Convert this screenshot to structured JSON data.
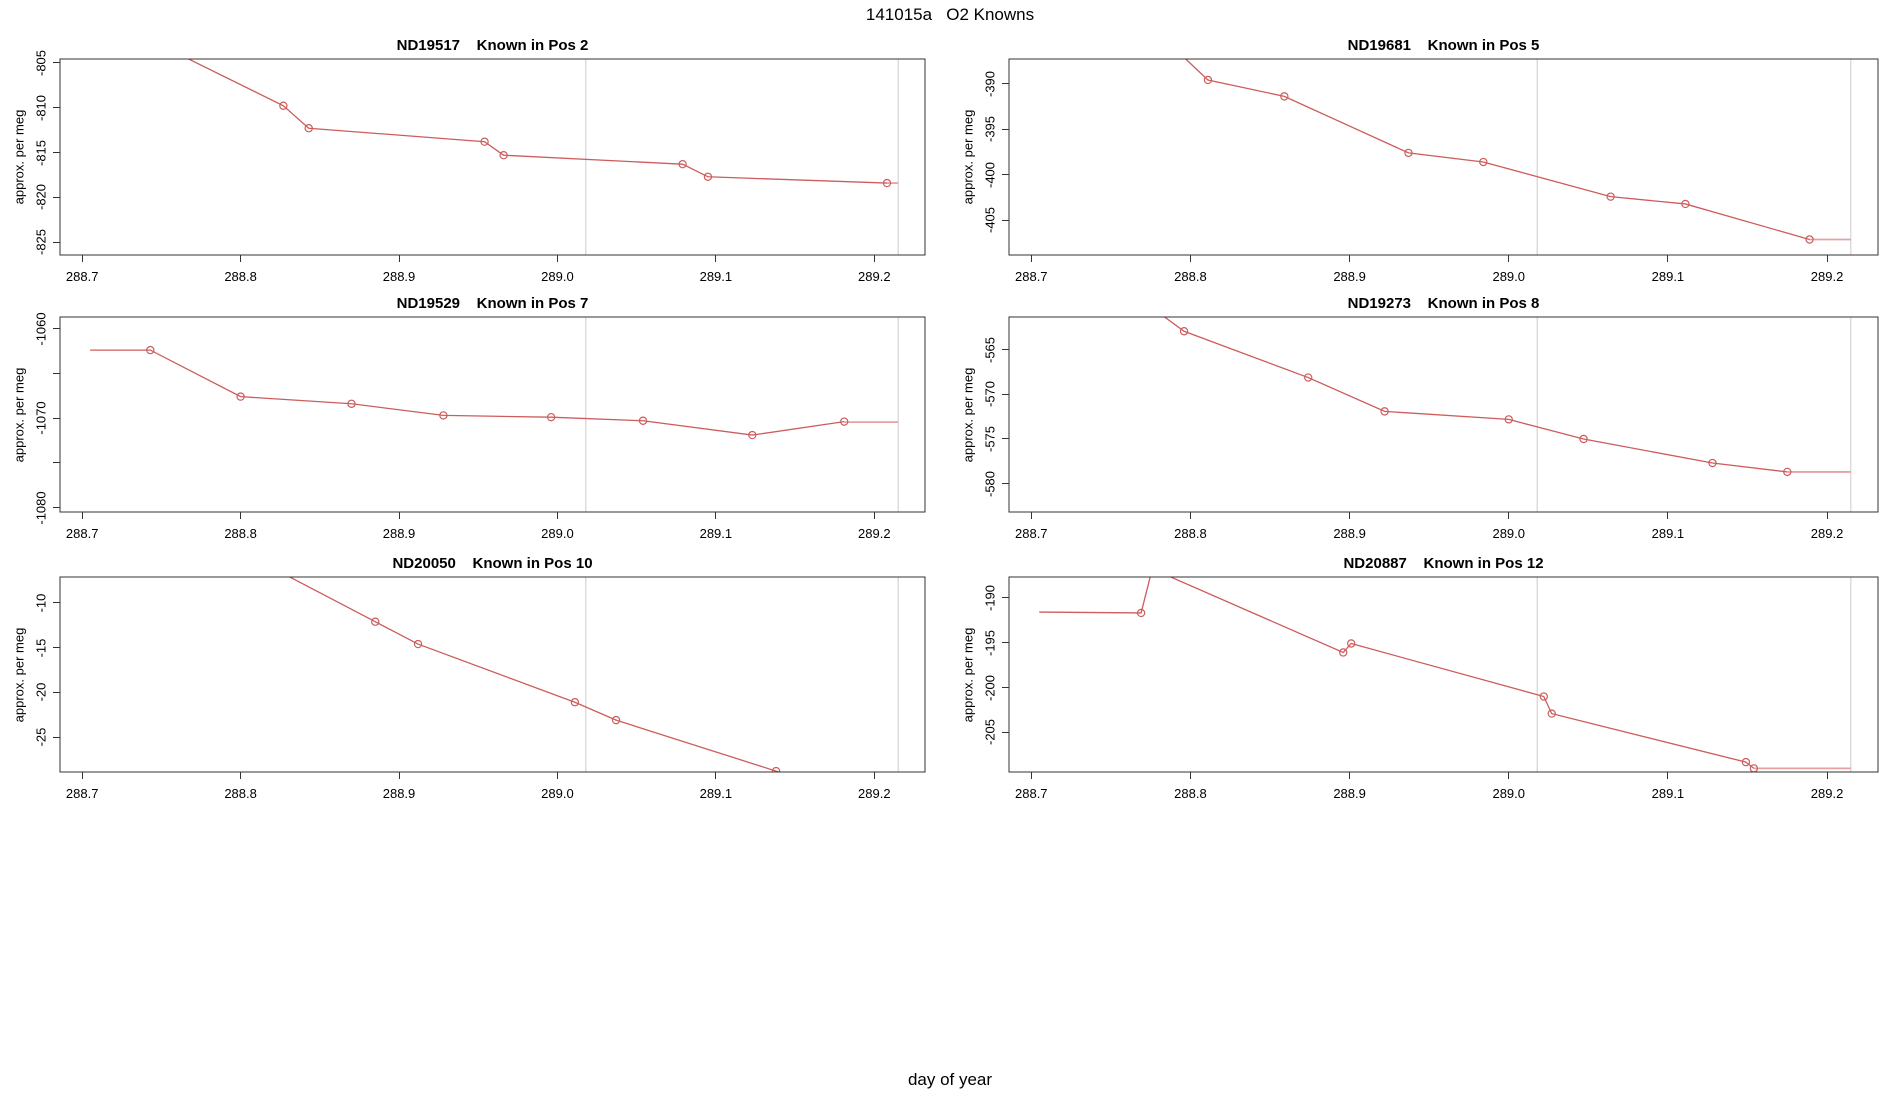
{
  "figure": {
    "title": "141015a   O2 Knowns",
    "xlabel": "day of year",
    "colors": {
      "line": "#CD5C5C",
      "tail": "#E4A2A0",
      "grid": "#DCDCDC",
      "axis": "#333333",
      "text": "#000000",
      "background": "#FFFFFF"
    }
  },
  "chart_data": [
    {
      "type": "line",
      "id": "ND19517",
      "title": "ND19517    Known in Pos 2",
      "ylabel": "approx. per meg",
      "xlim": [
        288.686,
        289.232
      ],
      "ylim": [
        -826.4,
        -804.6
      ],
      "x_ticks": [
        288.7,
        288.8,
        288.9,
        289.0,
        289.1,
        289.2
      ],
      "x_tick_labels": [
        "288.7",
        "288.8",
        "288.9",
        "289.0",
        "289.1",
        "289.2"
      ],
      "y_ticks": [
        {
          "v": -805,
          "label": "-805"
        },
        {
          "v": -810,
          "label": "-810"
        },
        {
          "v": -815,
          "label": "-815"
        },
        {
          "v": -820,
          "label": "-820"
        },
        {
          "v": -825,
          "label": "-825"
        }
      ],
      "vlines": [
        289.018,
        289.215
      ],
      "points": [
        {
          "x": 288.72,
          "y": -800.5,
          "marker": false
        },
        {
          "x": 288.827,
          "y": -809.8,
          "marker": true
        },
        {
          "x": 288.843,
          "y": -812.3,
          "marker": true
        },
        {
          "x": 288.954,
          "y": -813.8,
          "marker": true
        },
        {
          "x": 288.966,
          "y": -815.3,
          "marker": true
        },
        {
          "x": 289.079,
          "y": -816.3,
          "marker": true
        },
        {
          "x": 289.095,
          "y": -817.7,
          "marker": true
        },
        {
          "x": 289.208,
          "y": -818.4,
          "marker": true
        }
      ],
      "tail": {
        "x1": 289.208,
        "x2": 289.215,
        "y": -818.4
      }
    },
    {
      "type": "line",
      "id": "ND19681",
      "title": "ND19681    Known in Pos 5",
      "ylabel": "approx. per meg",
      "xlim": [
        288.686,
        289.232
      ],
      "ylim": [
        -408.8,
        -387.3
      ],
      "x_ticks": [
        288.7,
        288.8,
        288.9,
        289.0,
        289.1,
        289.2
      ],
      "x_tick_labels": [
        "288.7",
        "288.8",
        "288.9",
        "289.0",
        "289.1",
        "289.2"
      ],
      "y_ticks": [
        {
          "v": -390,
          "label": "-390"
        },
        {
          "v": -395,
          "label": "-395"
        },
        {
          "v": -400,
          "label": "-400"
        },
        {
          "v": -405,
          "label": "-405"
        }
      ],
      "vlines": [
        289.018,
        289.215
      ],
      "points": [
        {
          "x": 288.78,
          "y": -384.5,
          "marker": false
        },
        {
          "x": 288.811,
          "y": -389.6,
          "marker": true
        },
        {
          "x": 288.859,
          "y": -391.4,
          "marker": true
        },
        {
          "x": 288.937,
          "y": -397.6,
          "marker": true
        },
        {
          "x": 288.984,
          "y": -398.6,
          "marker": true
        },
        {
          "x": 289.064,
          "y": -402.4,
          "marker": true
        },
        {
          "x": 289.111,
          "y": -403.2,
          "marker": true
        },
        {
          "x": 289.189,
          "y": -407.1,
          "marker": true
        }
      ],
      "tail": {
        "x1": 289.189,
        "x2": 289.215,
        "y": -407.1
      }
    },
    {
      "type": "line",
      "id": "ND19529",
      "title": "ND19529    Known in Pos 7",
      "ylabel": "approx. per meg",
      "xlim": [
        288.686,
        289.232
      ],
      "ylim": [
        -1080.5,
        -1058.7
      ],
      "x_ticks": [
        288.7,
        288.8,
        288.9,
        289.0,
        289.1,
        289.2
      ],
      "x_tick_labels": [
        "288.7",
        "288.8",
        "288.9",
        "289.0",
        "289.1",
        "289.2"
      ],
      "y_ticks": [
        {
          "v": -1060,
          "label": "-1060"
        },
        {
          "v": -1065,
          "label": ""
        },
        {
          "v": -1070,
          "label": "-1070"
        },
        {
          "v": -1075,
          "label": ""
        },
        {
          "v": -1080,
          "label": "-1080"
        }
      ],
      "vlines": [
        289.018,
        289.215
      ],
      "points": [
        {
          "x": 288.705,
          "y": -1062.4,
          "marker": false
        },
        {
          "x": 288.743,
          "y": -1062.4,
          "marker": true
        },
        {
          "x": 288.8,
          "y": -1067.6,
          "marker": true
        },
        {
          "x": 288.87,
          "y": -1068.4,
          "marker": true
        },
        {
          "x": 288.928,
          "y": -1069.7,
          "marker": true
        },
        {
          "x": 288.996,
          "y": -1069.9,
          "marker": true
        },
        {
          "x": 289.054,
          "y": -1070.3,
          "marker": true
        },
        {
          "x": 289.123,
          "y": -1071.9,
          "marker": true
        },
        {
          "x": 289.181,
          "y": -1070.4,
          "marker": true
        }
      ],
      "tail": {
        "x1": 289.181,
        "x2": 289.215,
        "y": -1070.45
      }
    },
    {
      "type": "line",
      "id": "ND19273",
      "title": "ND19273    Known in Pos 8",
      "ylabel": "approx. per meg",
      "xlim": [
        288.686,
        289.232
      ],
      "ylim": [
        -583.2,
        -561.3
      ],
      "x_ticks": [
        288.7,
        288.8,
        288.9,
        289.0,
        289.1,
        289.2
      ],
      "x_tick_labels": [
        "288.7",
        "288.8",
        "288.9",
        "289.0",
        "289.1",
        "289.2"
      ],
      "y_ticks": [
        {
          "v": -565,
          "label": "-565"
        },
        {
          "v": -570,
          "label": "-570"
        },
        {
          "v": -575,
          "label": "-575"
        },
        {
          "v": -580,
          "label": "-580"
        }
      ],
      "vlines": [
        289.018,
        289.215
      ],
      "points": [
        {
          "x": 288.77,
          "y": -559.5,
          "marker": false
        },
        {
          "x": 288.796,
          "y": -562.9,
          "marker": true
        },
        {
          "x": 288.874,
          "y": -568.1,
          "marker": true
        },
        {
          "x": 288.922,
          "y": -571.9,
          "marker": true
        },
        {
          "x": 289.0,
          "y": -572.8,
          "marker": true
        },
        {
          "x": 289.047,
          "y": -575.0,
          "marker": true
        },
        {
          "x": 289.128,
          "y": -577.7,
          "marker": true
        },
        {
          "x": 289.175,
          "y": -578.7,
          "marker": true
        }
      ],
      "tail": {
        "x1": 289.175,
        "x2": 289.215,
        "y": -578.7
      }
    },
    {
      "type": "line",
      "id": "ND20050",
      "title": "ND20050    Known in Pos 10",
      "ylabel": "approx. per meg",
      "xlim": [
        288.686,
        289.232
      ],
      "ylim": [
        -28.9,
        -7.1
      ],
      "x_ticks": [
        288.7,
        288.8,
        288.9,
        289.0,
        289.1,
        289.2
      ],
      "x_tick_labels": [
        "288.7",
        "288.8",
        "288.9",
        "289.0",
        "289.1",
        "289.2"
      ],
      "y_ticks": [
        {
          "v": -10,
          "label": "-10"
        },
        {
          "v": -15,
          "label": "-15"
        },
        {
          "v": -20,
          "label": "-20"
        },
        {
          "v": -25,
          "label": "-25"
        }
      ],
      "vlines": [
        289.018,
        289.215
      ],
      "points": [
        {
          "x": 288.79,
          "y": -3.3,
          "marker": false
        },
        {
          "x": 288.885,
          "y": -12.1,
          "marker": true
        },
        {
          "x": 288.912,
          "y": -14.6,
          "marker": true
        },
        {
          "x": 289.011,
          "y": -21.1,
          "marker": true
        },
        {
          "x": 289.037,
          "y": -23.1,
          "marker": true
        },
        {
          "x": 289.138,
          "y": -28.8,
          "marker": true
        },
        {
          "x": 289.2,
          "y": -32.3,
          "marker": false
        }
      ],
      "tail": null
    },
    {
      "type": "line",
      "id": "ND20887",
      "title": "ND20887    Known in Pos 12",
      "ylabel": "approx. per meg",
      "xlim": [
        288.686,
        289.232
      ],
      "ylim": [
        -209.4,
        -187.7
      ],
      "x_ticks": [
        288.7,
        288.8,
        288.9,
        289.0,
        289.1,
        289.2
      ],
      "x_tick_labels": [
        "288.7",
        "288.8",
        "288.9",
        "289.0",
        "289.1",
        "289.2"
      ],
      "y_ticks": [
        {
          "v": -190,
          "label": "-190"
        },
        {
          "v": -195,
          "label": "-195"
        },
        {
          "v": -200,
          "label": "-200"
        },
        {
          "v": -205,
          "label": "-205"
        }
      ],
      "vlines": [
        289.018,
        289.215
      ],
      "points": [
        {
          "x": 288.705,
          "y": -191.6,
          "marker": false
        },
        {
          "x": 288.769,
          "y": -191.7,
          "marker": true
        },
        {
          "x": 288.776,
          "y": -186.8,
          "marker": false
        },
        {
          "x": 288.896,
          "y": -196.1,
          "marker": true
        },
        {
          "x": 288.901,
          "y": -195.1,
          "marker": true
        },
        {
          "x": 289.022,
          "y": -201.0,
          "marker": true
        },
        {
          "x": 289.027,
          "y": -202.9,
          "marker": true
        },
        {
          "x": 289.149,
          "y": -208.3,
          "marker": true
        },
        {
          "x": 289.154,
          "y": -209.0,
          "marker": true
        }
      ],
      "tail": {
        "x1": 289.154,
        "x2": 289.215,
        "y": -209.0
      }
    }
  ]
}
